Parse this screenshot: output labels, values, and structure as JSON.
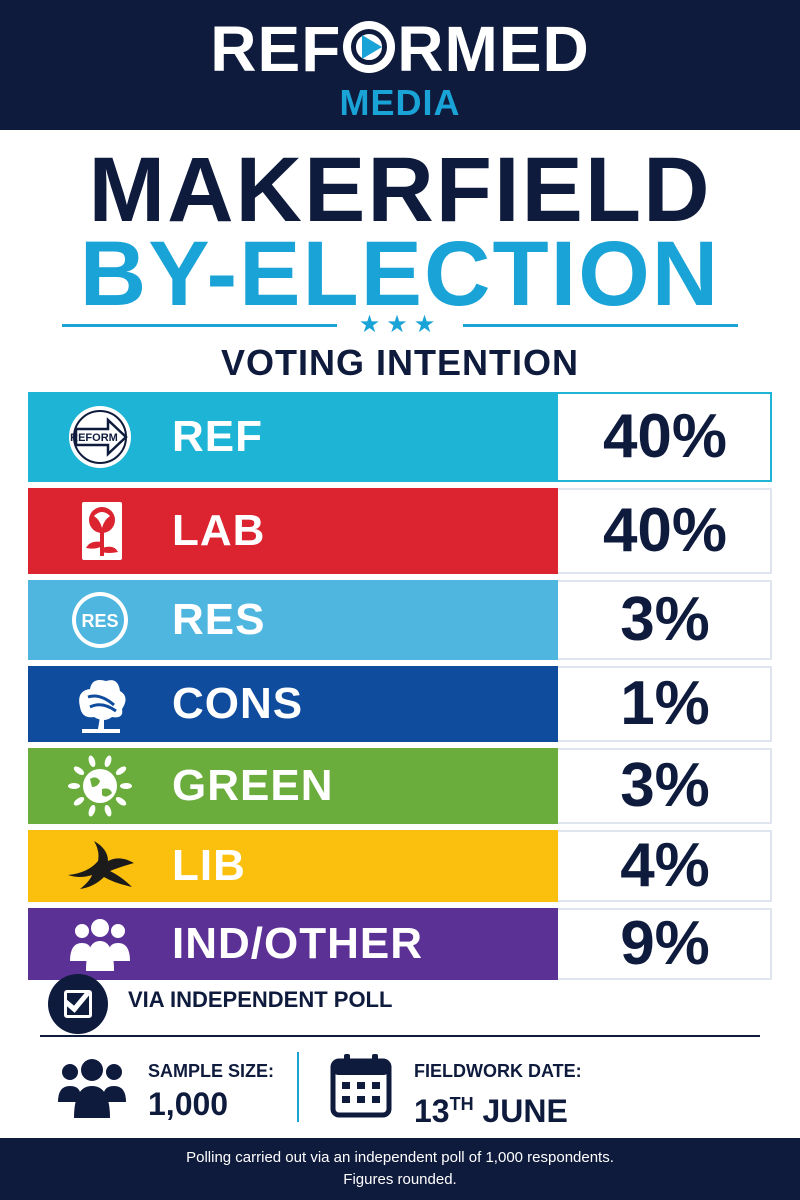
{
  "header": {
    "brand_left": "REF",
    "brand_right": "RMED",
    "brand_sub": "MEDIA"
  },
  "title": {
    "line1": "MAKERFIELD",
    "line2": "BY-ELECTION",
    "stars": "★★★",
    "subtitle": "VOTING INTENTION"
  },
  "colors": {
    "navy": "#0f1b3d",
    "accent": "#1aa3d6"
  },
  "chart_data": {
    "type": "table",
    "title": "VOTING INTENTION",
    "unit": "%",
    "categories": [
      "REF",
      "LAB",
      "RES",
      "CONS",
      "GREEN",
      "LIB",
      "IND/OTHER"
    ],
    "values": [
      40,
      40,
      3,
      1,
      3,
      4,
      9
    ],
    "value_labels": [
      "40%",
      "40%",
      "3%",
      "1%",
      "3%",
      "4%",
      "9%"
    ],
    "bar_colors": [
      "#1db4d6",
      "#dc2431",
      "#4fb6e0",
      "#0f4c9e",
      "#6aad3d",
      "#fbbf0d",
      "#5c3196"
    ],
    "logo_icons": [
      "reform-arrow-icon",
      "labour-rose-icon",
      "res-badge-icon",
      "conservative-tree-icon",
      "green-globe-icon",
      "libdem-bird-icon",
      "people-group-icon"
    ],
    "logo_text": [
      "REFORM",
      "",
      "RES",
      "",
      "",
      "",
      ""
    ]
  },
  "poll": {
    "verified_text": "VIA INDEPENDENT POLL",
    "sample_label": "SAMPLE SIZE:",
    "sample_value": "1,000",
    "date_label": "FIELDWORK DATE:",
    "date_day": "13",
    "date_suffix": "TH",
    "date_month": "JUNE"
  },
  "footer": {
    "line1": "Polling carried out via an independent poll of 1,000 respondents.",
    "line2": "Figures rounded."
  }
}
